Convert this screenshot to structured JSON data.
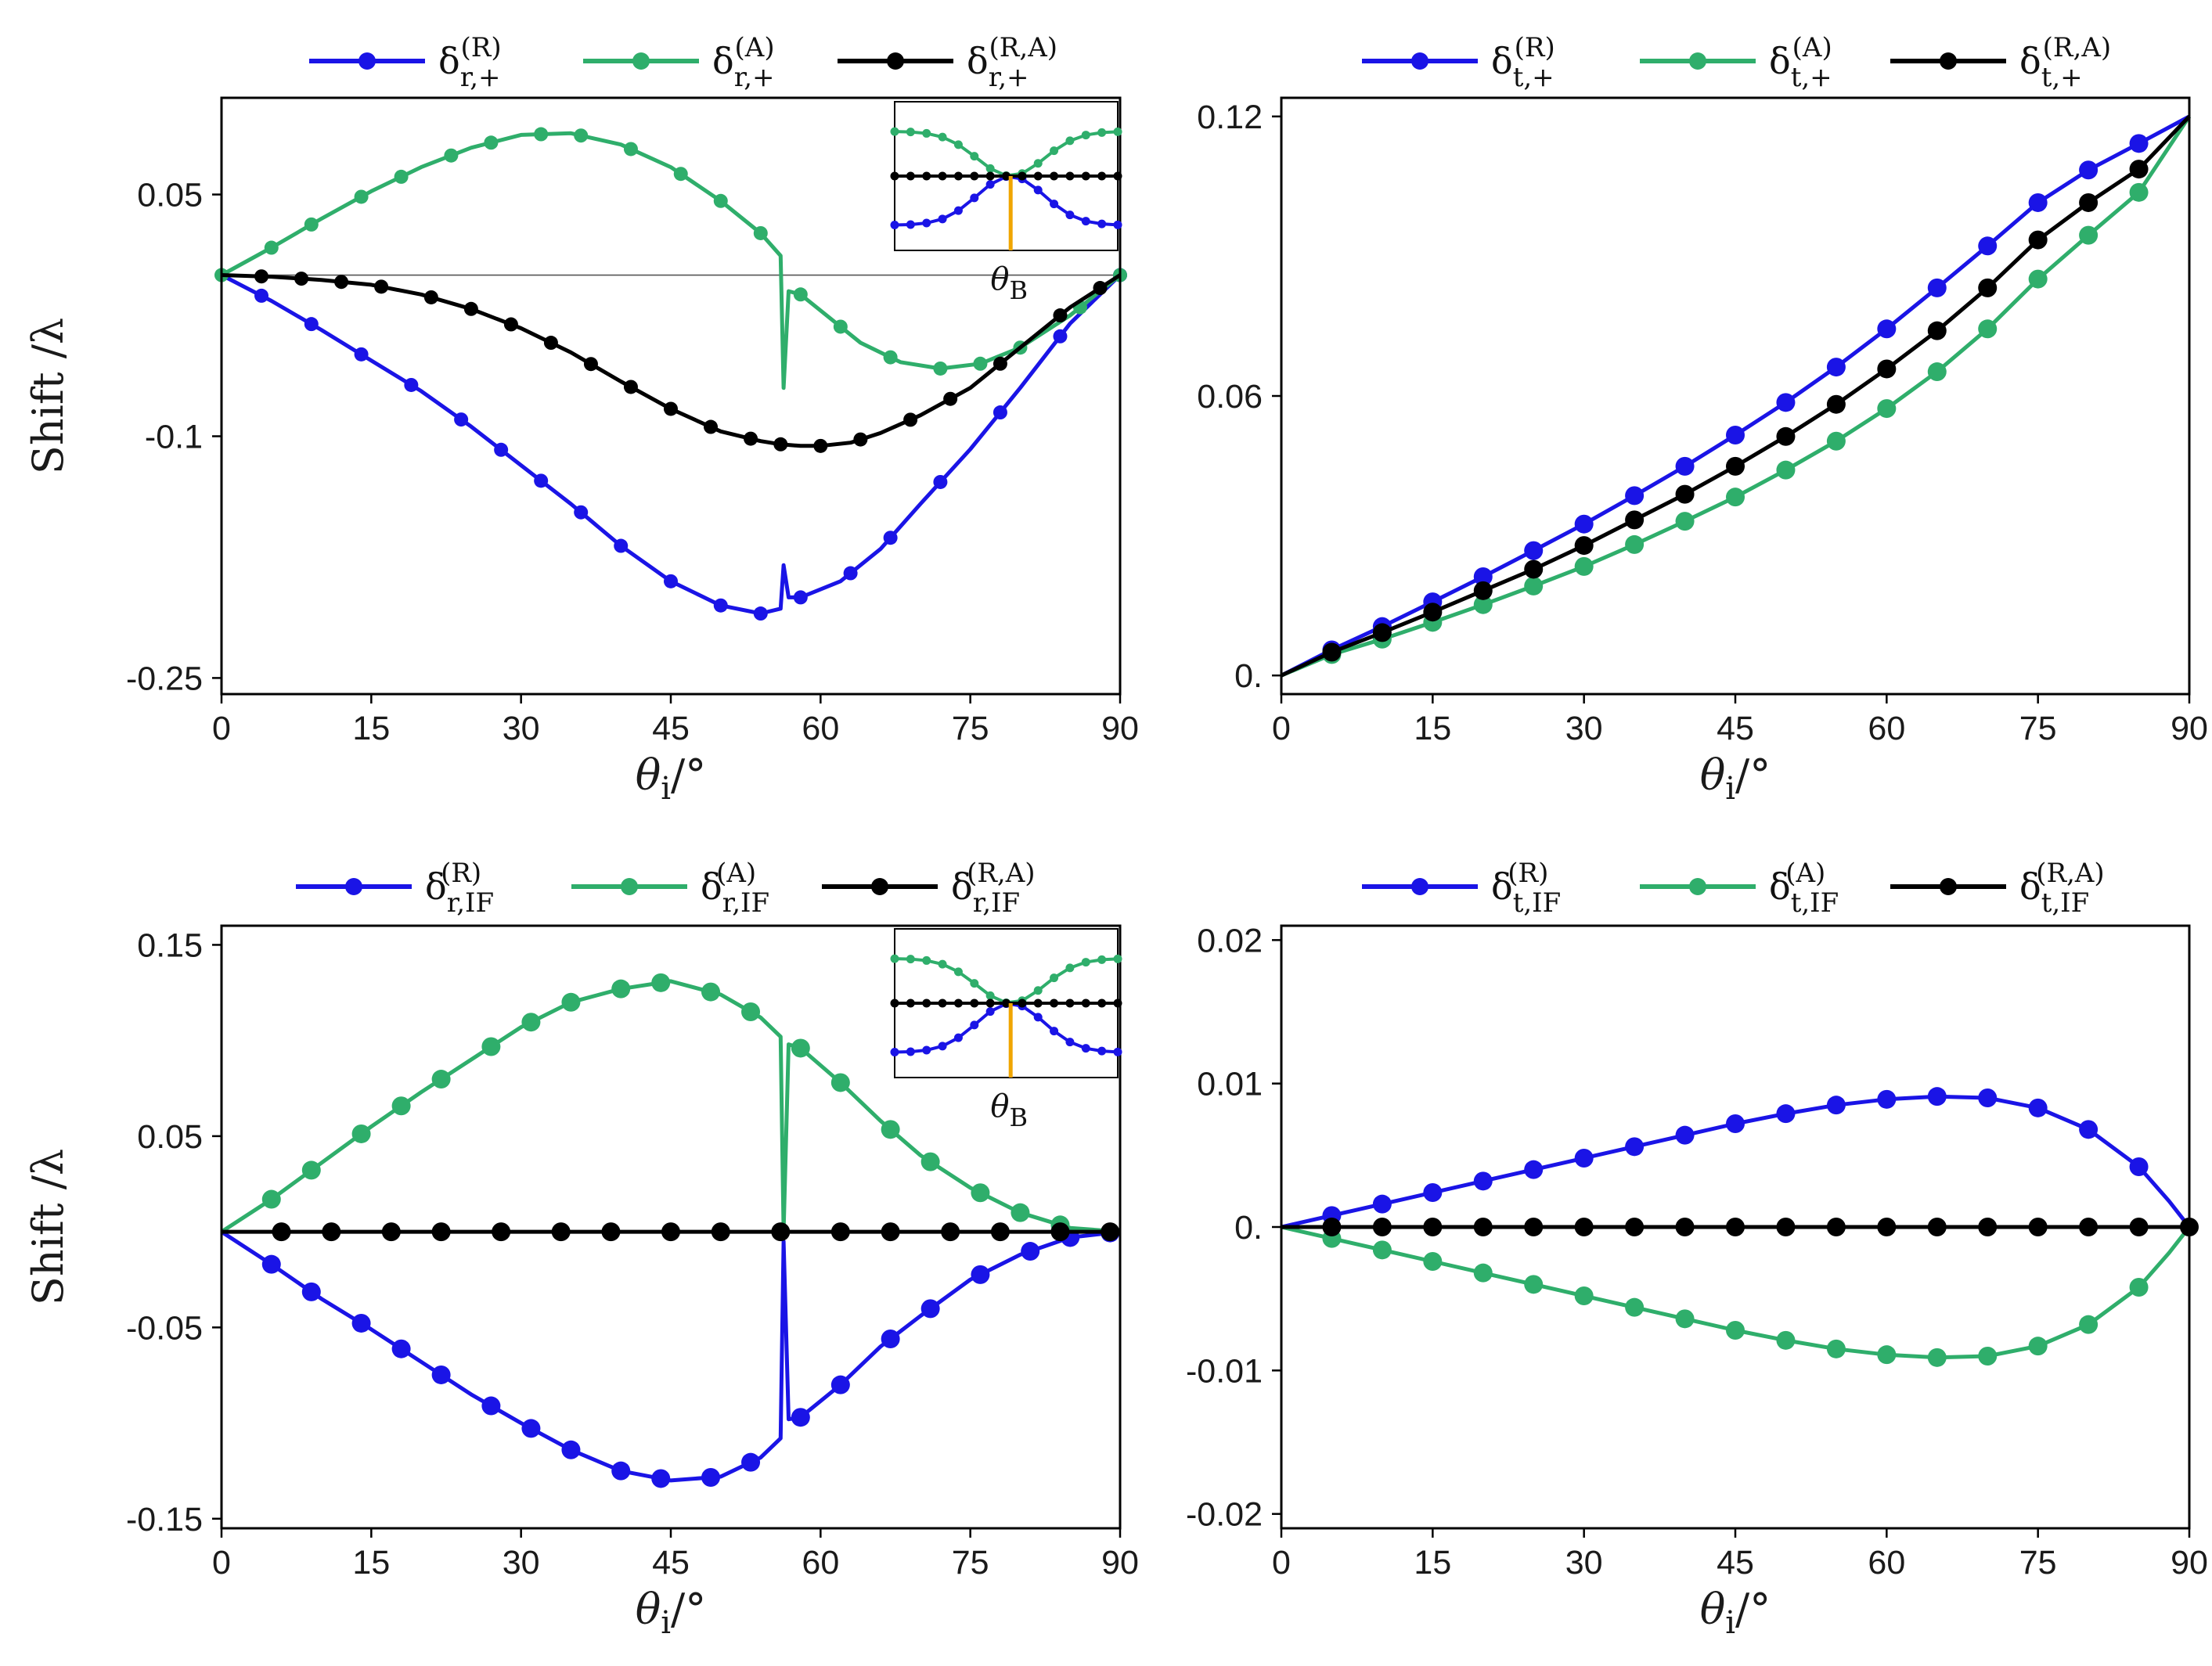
{
  "colors": {
    "R": "#1a14e6",
    "A": "#2fae6b",
    "RA": "#000000",
    "brewster": "#f0a500",
    "frame": "#000000",
    "zero_line": "#555555"
  },
  "axis_text": {
    "ylabel": "Shift /λ",
    "xlabel_base": "θ",
    "xlabel_sub": "i",
    "xlabel_tail": "/°",
    "inset_label_base": "θ",
    "inset_label_sub": "B"
  },
  "chart_data": [
    {
      "id": "r_plus",
      "type": "line",
      "xlim": [
        0,
        90
      ],
      "ylim": [
        -0.26,
        0.11
      ],
      "xticks": [
        0,
        15,
        30,
        45,
        60,
        75,
        90
      ],
      "yticks": [
        0.05,
        -0.1,
        -0.25
      ],
      "ytick_labels": [
        "0.05",
        "-0.1",
        "-0.25"
      ],
      "zero_line": true,
      "inset": true,
      "dot_size": "small",
      "legend": [
        {
          "key": "R",
          "sub": "r,+",
          "sup": "(R)"
        },
        {
          "key": "A",
          "sub": "r,+",
          "sup": "(A)"
        },
        {
          "key": "RA",
          "sub": "r,+",
          "sup": "(R,A)"
        }
      ],
      "series": [
        {
          "key": "R",
          "x": [
            0,
            5,
            10,
            15,
            20,
            25,
            30,
            35,
            40,
            45,
            50,
            54,
            56,
            56.3,
            56.8,
            58,
            62,
            66,
            70,
            75,
            80,
            85,
            90
          ],
          "y": [
            0,
            -0.016,
            -0.034,
            -0.053,
            -0.072,
            -0.094,
            -0.118,
            -0.142,
            -0.168,
            -0.19,
            -0.205,
            -0.21,
            -0.207,
            -0.18,
            -0.2,
            -0.2,
            -0.19,
            -0.17,
            -0.142,
            -0.108,
            -0.07,
            -0.03,
            0
          ],
          "markers_x": [
            4,
            9,
            14,
            19,
            24,
            28,
            32,
            36,
            40,
            45,
            50,
            54,
            58,
            63,
            67,
            72,
            78,
            84,
            90
          ]
        },
        {
          "key": "A",
          "x": [
            0,
            5,
            10,
            15,
            20,
            25,
            30,
            35,
            40,
            45,
            50,
            54,
            56,
            56.3,
            56.8,
            58,
            60,
            64,
            68,
            72,
            76,
            80,
            85,
            90
          ],
          "y": [
            0,
            0.017,
            0.035,
            0.052,
            0.067,
            0.079,
            0.087,
            0.088,
            0.081,
            0.067,
            0.046,
            0.026,
            0.012,
            -0.07,
            -0.01,
            -0.012,
            -0.022,
            -0.042,
            -0.054,
            -0.058,
            -0.055,
            -0.045,
            -0.025,
            0
          ],
          "markers_x": [
            0,
            5,
            9,
            14,
            18,
            23,
            27,
            32,
            36,
            41,
            46,
            50,
            54,
            58,
            62,
            67,
            72,
            76,
            80,
            86,
            90
          ]
        },
        {
          "key": "RA",
          "x": [
            0,
            5,
            10,
            15,
            20,
            25,
            30,
            35,
            40,
            45,
            50,
            54,
            56,
            58,
            60,
            63,
            66,
            70,
            75,
            80,
            85,
            90
          ],
          "y": [
            0,
            -0.001,
            -0.003,
            -0.006,
            -0.012,
            -0.021,
            -0.033,
            -0.048,
            -0.066,
            -0.083,
            -0.097,
            -0.103,
            -0.105,
            -0.106,
            -0.106,
            -0.104,
            -0.098,
            -0.087,
            -0.07,
            -0.045,
            -0.02,
            0
          ],
          "markers_x": [
            4,
            8,
            12,
            16,
            21,
            25,
            29,
            33,
            37,
            41,
            45,
            49,
            53,
            56,
            60,
            64,
            69,
            73,
            78,
            84,
            88
          ]
        }
      ]
    },
    {
      "id": "t_plus",
      "type": "line",
      "xlim": [
        0,
        90
      ],
      "ylim": [
        -0.004,
        0.124
      ],
      "xticks": [
        0,
        15,
        30,
        45,
        60,
        75,
        90
      ],
      "yticks": [
        0,
        0.06,
        0.12
      ],
      "ytick_labels": [
        "0.",
        "0.06",
        "0.12"
      ],
      "zero_line": false,
      "inset": false,
      "dot_size": "large",
      "legend": [
        {
          "key": "R",
          "sub": "t,+",
          "sup": "(R)"
        },
        {
          "key": "A",
          "sub": "t,+",
          "sup": "(A)"
        },
        {
          "key": "RA",
          "sub": "t,+",
          "sup": "(R,A)"
        }
      ],
      "series": [
        {
          "key": "R",
          "x": [
            0,
            5,
            10,
            15,
            20,
            25,
            30,
            35,
            40,
            45,
            50,
            55,
            60,
            65,
            70,
            75,
            80,
            85,
            90
          ],
          "y": [
            0,
            0.0055,
            0.0105,
            0.0158,
            0.0212,
            0.0268,
            0.0325,
            0.0386,
            0.0449,
            0.0516,
            0.0586,
            0.0662,
            0.0744,
            0.0832,
            0.0922,
            0.1015,
            0.1085,
            0.1142,
            0.12
          ],
          "markers_x": [
            5,
            10,
            15,
            20,
            25,
            30,
            35,
            40,
            45,
            50,
            55,
            60,
            65,
            70,
            75,
            80,
            85
          ]
        },
        {
          "key": "A",
          "x": [
            0,
            5,
            10,
            15,
            20,
            25,
            30,
            35,
            40,
            45,
            50,
            55,
            60,
            65,
            70,
            75,
            80,
            85,
            90
          ],
          "y": [
            0,
            0.0045,
            0.0078,
            0.0114,
            0.0152,
            0.0192,
            0.0234,
            0.0281,
            0.0331,
            0.0383,
            0.0441,
            0.0503,
            0.0573,
            0.0652,
            0.0744,
            0.0851,
            0.0945,
            0.1037,
            0.12
          ],
          "markers_x": [
            5,
            10,
            15,
            20,
            25,
            30,
            35,
            40,
            45,
            50,
            55,
            60,
            65,
            70,
            75,
            80,
            85
          ]
        },
        {
          "key": "RA",
          "x": [
            0,
            5,
            10,
            15,
            20,
            25,
            30,
            35,
            40,
            45,
            50,
            55,
            60,
            65,
            70,
            75,
            80,
            85,
            90
          ],
          "y": [
            0,
            0.005,
            0.0092,
            0.0136,
            0.0182,
            0.0228,
            0.0279,
            0.0334,
            0.0389,
            0.0449,
            0.0513,
            0.0582,
            0.0658,
            0.074,
            0.0832,
            0.0935,
            0.1015,
            0.1087,
            0.12
          ],
          "markers_x": [
            5,
            10,
            15,
            20,
            25,
            30,
            35,
            40,
            45,
            50,
            55,
            60,
            65,
            70,
            75,
            80,
            85
          ]
        }
      ]
    },
    {
      "id": "r_if",
      "type": "line",
      "xlim": [
        0,
        90
      ],
      "ylim": [
        -0.155,
        0.16
      ],
      "xticks": [
        0,
        15,
        30,
        45,
        60,
        75,
        90
      ],
      "yticks": [
        0.15,
        0.05,
        -0.05,
        -0.15
      ],
      "ytick_labels": [
        "0.15",
        "0.05",
        "-0.05",
        "-0.15"
      ],
      "zero_line": false,
      "inset": true,
      "dot_size": "large",
      "legend": [
        {
          "key": "R",
          "sub": "r,IF",
          "sup": "(R)"
        },
        {
          "key": "A",
          "sub": "r,IF",
          "sup": "(A)"
        },
        {
          "key": "RA",
          "sub": "r,IF",
          "sup": "(R,A)"
        }
      ],
      "series": [
        {
          "key": "R",
          "x": [
            0,
            5,
            10,
            15,
            20,
            25,
            30,
            35,
            40,
            45,
            50,
            54,
            56,
            56.3,
            56.8,
            58,
            62,
            66,
            70,
            75,
            80,
            85,
            90
          ],
          "y": [
            0,
            -0.017,
            -0.035,
            -0.051,
            -0.068,
            -0.085,
            -0.1,
            -0.114,
            -0.125,
            -0.13,
            -0.128,
            -0.118,
            -0.108,
            -0.005,
            -0.098,
            -0.097,
            -0.08,
            -0.06,
            -0.044,
            -0.025,
            -0.012,
            -0.003,
            0
          ],
          "markers_x": [
            5,
            9,
            14,
            18,
            22,
            27,
            31,
            35,
            40,
            44,
            49,
            53,
            58,
            62,
            67,
            71,
            76,
            81,
            85,
            89
          ]
        },
        {
          "key": "A",
          "x": [
            0,
            5,
            10,
            15,
            20,
            25,
            30,
            35,
            40,
            45,
            50,
            54,
            56,
            56.3,
            56.8,
            58,
            62,
            66,
            70,
            75,
            80,
            85,
            90
          ],
          "y": [
            0,
            0.017,
            0.036,
            0.055,
            0.073,
            0.09,
            0.107,
            0.12,
            0.127,
            0.131,
            0.124,
            0.112,
            0.102,
            0.0,
            0.098,
            0.096,
            0.078,
            0.058,
            0.04,
            0.023,
            0.01,
            0.002,
            0
          ],
          "markers_x": [
            5,
            9,
            14,
            18,
            22,
            27,
            31,
            35,
            40,
            44,
            49,
            53,
            58,
            62,
            67,
            71,
            76,
            80,
            84
          ]
        },
        {
          "key": "RA",
          "x": [
            0,
            90
          ],
          "y": [
            0,
            0
          ],
          "markers_x": [
            6,
            11,
            17,
            22,
            28,
            34,
            39,
            45,
            50,
            56,
            62,
            67,
            73,
            78,
            84,
            89
          ]
        }
      ]
    },
    {
      "id": "t_if",
      "type": "line",
      "xlim": [
        0,
        90
      ],
      "ylim": [
        -0.021,
        0.021
      ],
      "xticks": [
        0,
        15,
        30,
        45,
        60,
        75,
        90
      ],
      "yticks": [
        0.02,
        0.01,
        0,
        -0.01,
        -0.02
      ],
      "ytick_labels": [
        "0.02",
        "0.01",
        "0.",
        "-0.01",
        "-0.02"
      ],
      "zero_line": false,
      "inset": false,
      "dot_size": "large",
      "legend": [
        {
          "key": "R",
          "sub": "t,IF",
          "sup": "(R)"
        },
        {
          "key": "A",
          "sub": "t,IF",
          "sup": "(A)"
        },
        {
          "key": "RA",
          "sub": "t,IF",
          "sup": "(R,A)"
        }
      ],
      "series": [
        {
          "key": "R",
          "x": [
            0,
            5,
            10,
            15,
            20,
            25,
            30,
            35,
            40,
            45,
            50,
            55,
            60,
            65,
            70,
            75,
            80,
            85,
            88,
            90
          ],
          "y": [
            0,
            0.0008,
            0.0016,
            0.0024,
            0.0032,
            0.004,
            0.0048,
            0.0056,
            0.0064,
            0.0072,
            0.0079,
            0.0085,
            0.0089,
            0.0091,
            0.009,
            0.0083,
            0.0068,
            0.0042,
            0.0018,
            0
          ],
          "markers_x": [
            5,
            10,
            15,
            20,
            25,
            30,
            35,
            40,
            45,
            50,
            55,
            60,
            65,
            70,
            75,
            80,
            85
          ]
        },
        {
          "key": "A",
          "x": [
            0,
            5,
            10,
            15,
            20,
            25,
            30,
            35,
            40,
            45,
            50,
            55,
            60,
            65,
            70,
            75,
            80,
            85,
            88,
            90
          ],
          "y": [
            0,
            -0.0008,
            -0.0016,
            -0.0024,
            -0.0032,
            -0.004,
            -0.0048,
            -0.0056,
            -0.0064,
            -0.0072,
            -0.0079,
            -0.0085,
            -0.0089,
            -0.0091,
            -0.009,
            -0.0083,
            -0.0068,
            -0.0042,
            -0.0018,
            0
          ],
          "markers_x": [
            5,
            10,
            15,
            20,
            25,
            30,
            35,
            40,
            45,
            50,
            55,
            60,
            65,
            70,
            75,
            80,
            85
          ]
        },
        {
          "key": "RA",
          "x": [
            0,
            90
          ],
          "y": [
            0,
            0
          ],
          "markers_x": [
            5,
            10,
            15,
            20,
            25,
            30,
            35,
            40,
            45,
            50,
            55,
            60,
            65,
            70,
            75,
            80,
            85,
            90
          ]
        }
      ]
    }
  ]
}
